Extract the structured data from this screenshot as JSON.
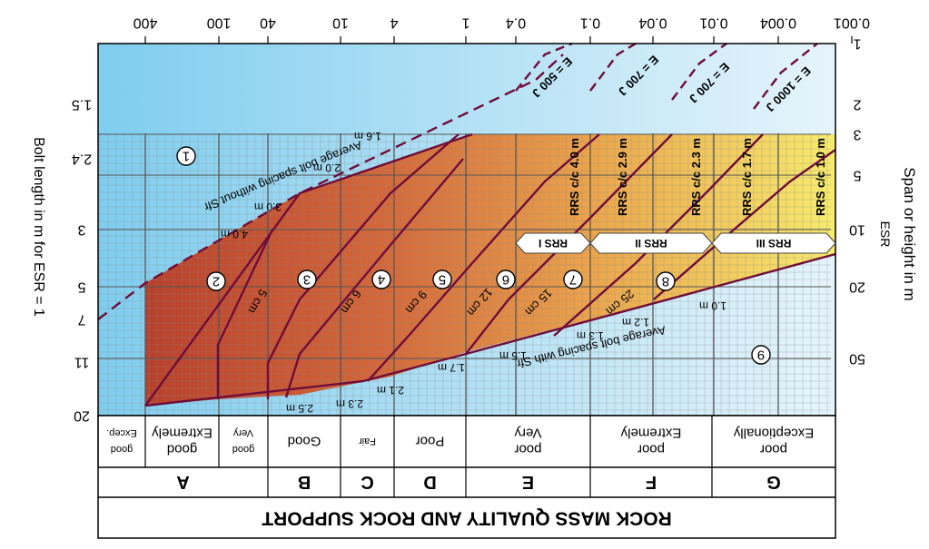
{
  "title": "ROCK MASS QUALITY AND ROCK SUPPORT",
  "left_axis_title": "Bolt length in m for ESR = 1",
  "right_axis_title": "Span or height in m",
  "right_axis_subtitle": "ESR",
  "q_ticks": [
    "0.001",
    "0.004",
    "0.01",
    "0.04",
    "0.1",
    "0.4",
    "1",
    "4",
    "10",
    "40",
    "100",
    "400"
  ],
  "span_ticks": [
    "1",
    "2",
    "3",
    "5",
    "10",
    "20",
    "50"
  ],
  "bolt_ticks": [
    "1.5",
    "2.4",
    "3",
    "5",
    "7",
    "11",
    "20"
  ],
  "classes": [
    {
      "letter": "G",
      "quality": [
        "Exceptionally",
        "poor"
      ]
    },
    {
      "letter": "F",
      "quality": [
        "Extremely",
        "poor"
      ]
    },
    {
      "letter": "E",
      "quality": [
        "Very",
        "poor"
      ]
    },
    {
      "letter": "D",
      "quality": [
        "Poor"
      ]
    },
    {
      "letter": "C",
      "quality": [
        "Fair"
      ]
    },
    {
      "letter": "B",
      "quality": [
        "Good"
      ]
    },
    {
      "letter": "A",
      "quality": [
        "Very",
        "good"
      ]
    },
    {
      "letter": "",
      "quality": [
        "Extremely",
        "good"
      ]
    },
    {
      "letter": "",
      "quality": [
        "Excep.",
        "good"
      ]
    }
  ],
  "energy_labels": [
    "E = 1000 J",
    "E = 700 J",
    "E = 700 J",
    "E = 500 J"
  ],
  "rrs_labels": [
    "RRS c/c 1.0 m",
    "RRS c/c 1.7 m",
    "RRS c/c 2.3 m",
    "RRS c/c 2.9 m",
    "RRS c/c 4.0 m"
  ],
  "rrs_arrows": [
    "RRS III",
    "RRS II",
    "RRS I"
  ],
  "curve_upper_label": "Average bolt spacing without Sfr",
  "curve_lower_label": "Average bolt spacing with Sfr",
  "zone_numbers": [
    "1",
    "2",
    "3",
    "4",
    "5",
    "6",
    "7",
    "8",
    "9"
  ],
  "spacing_labels_top": [
    "1.6 m",
    "2.0 m",
    "3.0 m",
    "4.0 m"
  ],
  "spacing_labels_bottom": [
    "1.0 m",
    "1.2 m",
    "1.3 m",
    "1.5 m",
    "1.7 m",
    "2.1 m",
    "2.3 m",
    "2.5 m"
  ],
  "sfr_thickness": [
    "25 cm",
    "15 cm",
    "12 cm",
    "9 cm",
    "6 cm",
    "5 cm"
  ],
  "colors": {
    "frame": "#000000",
    "grid": "#8a8a8a",
    "curve": "#6e0d3a",
    "blue": "#8fd3f0",
    "red": "#b8412b",
    "orange": "#e39a45",
    "yellow": "#f5e46a"
  }
}
